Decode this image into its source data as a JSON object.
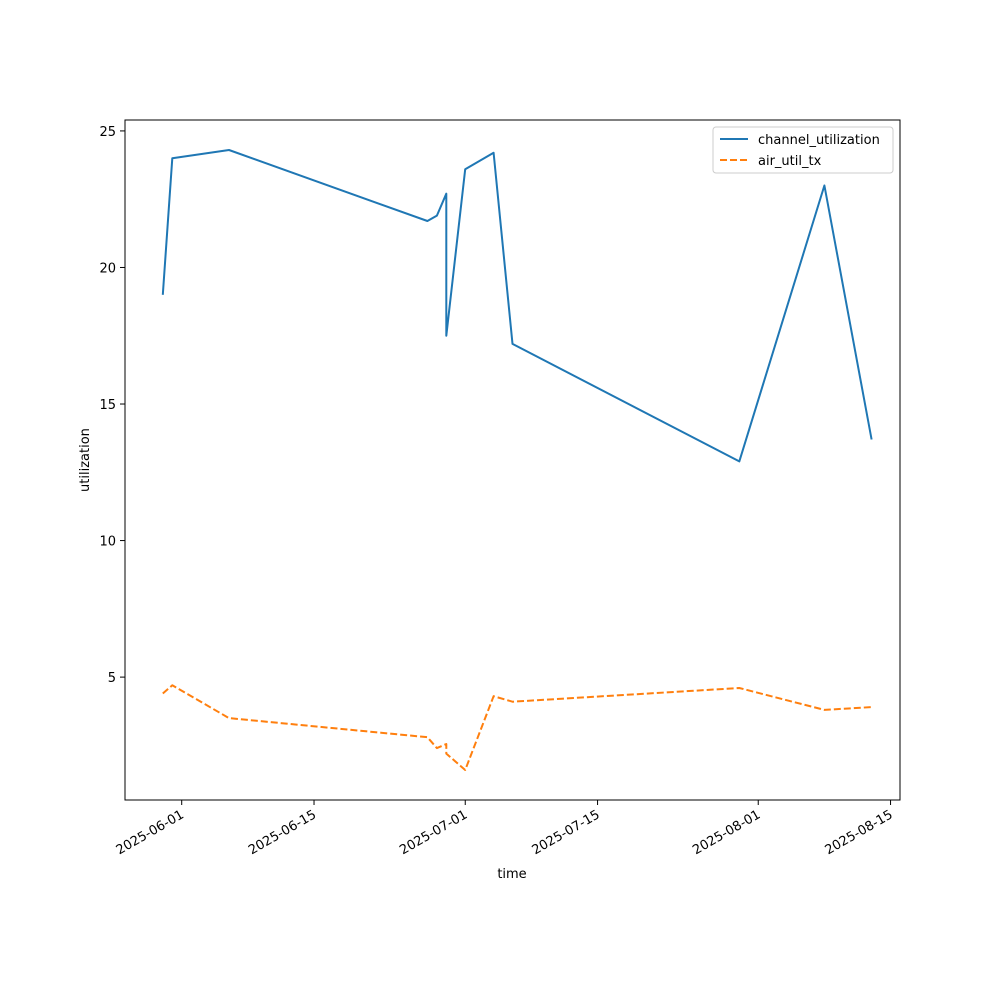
{
  "chart_data": {
    "type": "line",
    "xlabel": "time",
    "ylabel": "utilization",
    "x_type": "date",
    "xlim": [
      "2025-05-26",
      "2025-08-16"
    ],
    "ylim": [
      0.5,
      25.4
    ],
    "x_ticks": [
      "2025-06-01",
      "2025-06-15",
      "2025-07-01",
      "2025-07-15",
      "2025-08-01",
      "2025-08-15"
    ],
    "y_ticks": [
      5,
      10,
      15,
      20,
      25
    ],
    "grid": false,
    "legend_position": "top-right",
    "series": [
      {
        "name": "channel_utilization",
        "color": "#1f77b4",
        "line_style": "solid",
        "points": [
          {
            "x": "2025-05-30",
            "y": 19.0
          },
          {
            "x": "2025-05-31",
            "y": 24.0
          },
          {
            "x": "2025-06-06",
            "y": 24.3
          },
          {
            "x": "2025-06-27",
            "y": 21.7
          },
          {
            "x": "2025-06-28",
            "y": 21.9
          },
          {
            "x": "2025-06-29",
            "y": 22.7
          },
          {
            "x": "2025-06-29",
            "y": 17.5
          },
          {
            "x": "2025-07-01",
            "y": 23.6
          },
          {
            "x": "2025-07-04",
            "y": 24.2
          },
          {
            "x": "2025-07-06",
            "y": 17.2
          },
          {
            "x": "2025-07-30",
            "y": 12.9
          },
          {
            "x": "2025-08-08",
            "y": 23.0
          },
          {
            "x": "2025-08-13",
            "y": 13.7
          }
        ]
      },
      {
        "name": "air_util_tx",
        "color": "#ff7f0e",
        "line_style": "dashed",
        "points": [
          {
            "x": "2025-05-30",
            "y": 4.4
          },
          {
            "x": "2025-05-31",
            "y": 4.7
          },
          {
            "x": "2025-06-06",
            "y": 3.5
          },
          {
            "x": "2025-06-27",
            "y": 2.8
          },
          {
            "x": "2025-06-28",
            "y": 2.4
          },
          {
            "x": "2025-06-29",
            "y": 2.55
          },
          {
            "x": "2025-06-29",
            "y": 2.2
          },
          {
            "x": "2025-07-01",
            "y": 1.6
          },
          {
            "x": "2025-07-04",
            "y": 4.3
          },
          {
            "x": "2025-07-06",
            "y": 4.1
          },
          {
            "x": "2025-07-30",
            "y": 4.6
          },
          {
            "x": "2025-08-08",
            "y": 3.8
          },
          {
            "x": "2025-08-13",
            "y": 3.9
          }
        ]
      }
    ]
  }
}
